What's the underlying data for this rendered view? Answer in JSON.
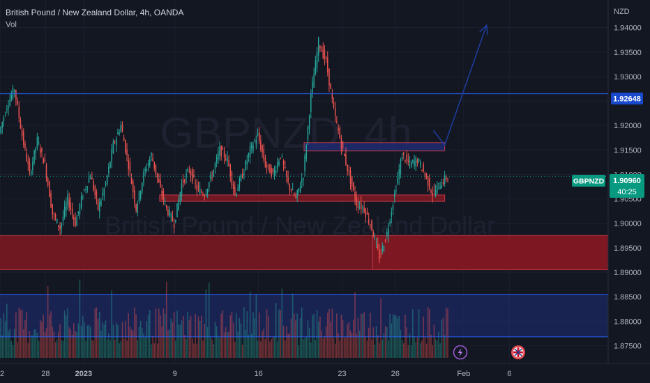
{
  "header": {
    "title": "British Pound / New Zealand Dollar, 4h, OANDA",
    "indicator": "Vol"
  },
  "watermark": {
    "symbol": "GBPNZD, 4h",
    "name": "British Pound / New Zealand Dollar"
  },
  "axis": {
    "currency": "NZD"
  },
  "price_badges": {
    "level_label": "1.92648",
    "symbol_tag": "GBPNZD",
    "last_price": "1.90960",
    "countdown": "40:25"
  },
  "colors": {
    "background": "#131722",
    "up": "#26a69a",
    "down": "#ef5350",
    "level_line": "#2962ff",
    "zone_red": "#801922",
    "zone_blue": "#1e2a6e",
    "arrow": "#1e3a9a"
  },
  "icons": [
    "lightning-icon",
    "uk-flag-icon"
  ],
  "chart_data": {
    "type": "candlestick",
    "title": "British Pound / New Zealand Dollar, 4h, OANDA",
    "ylim": [
      1.8725,
      1.9445
    ],
    "y_ticks": [
      "1.94000",
      "1.93500",
      "1.93000",
      "1.92500",
      "1.92000",
      "1.91500",
      "1.91000",
      "1.90500",
      "1.90000",
      "1.89500",
      "1.89000",
      "1.88500",
      "1.88000",
      "1.87500"
    ],
    "x_ticks": [
      {
        "label": "2",
        "x": 0
      },
      {
        "label": "28",
        "x": 6
      },
      {
        "label": "2023",
        "x": 11
      },
      {
        "label": "9",
        "x": 23
      },
      {
        "label": "16",
        "x": 34
      },
      {
        "label": "23",
        "x": 45
      },
      {
        "label": "26",
        "x": 52
      },
      {
        "label": "Feb",
        "x": 61
      },
      {
        "label": "6",
        "x": 67
      }
    ],
    "x_range": [
      0,
      80
    ],
    "price_anchors": [
      [
        0,
        1.9185
      ],
      [
        1,
        1.924
      ],
      [
        2,
        1.9275
      ],
      [
        3,
        1.918
      ],
      [
        4,
        1.91
      ],
      [
        5,
        1.917
      ],
      [
        6,
        1.912
      ],
      [
        7,
        1.902
      ],
      [
        8,
        1.899
      ],
      [
        9,
        1.905
      ],
      [
        10,
        1.9
      ],
      [
        11,
        1.906
      ],
      [
        12,
        1.91
      ],
      [
        13,
        1.903
      ],
      [
        14,
        1.908
      ],
      [
        15,
        1.916
      ],
      [
        16,
        1.92
      ],
      [
        17,
        1.912
      ],
      [
        18,
        1.903
      ],
      [
        19,
        1.91
      ],
      [
        20,
        1.914
      ],
      [
        21,
        1.908
      ],
      [
        22,
        1.903
      ],
      [
        23,
        1.9
      ],
      [
        24,
        1.908
      ],
      [
        25,
        1.911
      ],
      [
        26,
        1.907
      ],
      [
        27,
        1.906
      ],
      [
        28,
        1.91
      ],
      [
        29,
        1.915
      ],
      [
        30,
        1.913
      ],
      [
        31,
        1.906
      ],
      [
        32,
        1.91
      ],
      [
        33,
        1.915
      ],
      [
        34,
        1.918
      ],
      [
        35,
        1.912
      ],
      [
        36,
        1.91
      ],
      [
        37,
        1.914
      ],
      [
        38,
        1.908
      ],
      [
        39,
        1.905
      ],
      [
        40,
        1.91
      ],
      [
        41,
        1.926
      ],
      [
        42,
        1.937
      ],
      [
        43,
        1.933
      ],
      [
        44,
        1.923
      ],
      [
        45,
        1.916
      ],
      [
        46,
        1.91
      ],
      [
        47,
        1.904
      ],
      [
        48,
        1.903
      ],
      [
        49,
        1.899
      ],
      [
        50,
        1.893
      ],
      [
        51,
        1.898
      ],
      [
        52,
        1.906
      ],
      [
        53,
        1.914
      ],
      [
        54,
        1.912
      ],
      [
        55,
        1.913
      ],
      [
        56,
        1.91
      ],
      [
        57,
        1.906
      ],
      [
        58,
        1.908
      ],
      [
        59,
        1.9096
      ]
    ],
    "volume_profile": "4h volume bars along the bottom pane",
    "levels": [
      {
        "price": 1.92648,
        "label": "1.92648"
      },
      {
        "price": 1.8855
      },
      {
        "price": 1.8768
      }
    ],
    "zones": [
      {
        "kind": "resistance",
        "x": [
          40,
          58.5
        ],
        "y": [
          1.9148,
          1.9165
        ]
      },
      {
        "kind": "support",
        "x": [
          21,
          58.5
        ],
        "y": [
          1.9045,
          1.9058
        ]
      },
      {
        "kind": "support",
        "x": [
          -1,
          80
        ],
        "y": [
          1.8905,
          1.8975
        ]
      },
      {
        "kind": "support",
        "x": [
          49,
          80
        ],
        "y": [
          1.8905,
          1.8975
        ]
      }
    ],
    "projection": [
      [
        57,
        1.919
      ],
      [
        58.5,
        1.916
      ],
      [
        64,
        1.9405
      ]
    ],
    "last_price": 1.9096
  }
}
